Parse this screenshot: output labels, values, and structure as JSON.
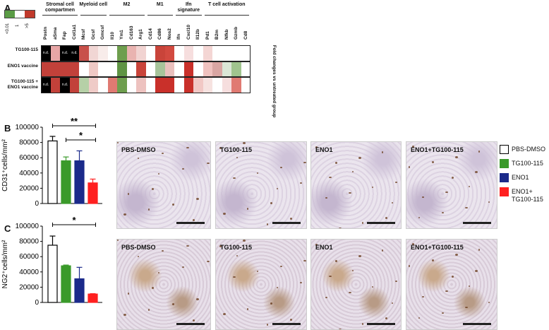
{
  "panels": {
    "a": "A",
    "b": "B",
    "c": "C"
  },
  "heatmap": {
    "scale_labels": [
      ">5",
      "1",
      "<0.01"
    ],
    "scale_colors": [
      "#c0392b",
      "#ffffff",
      "#5a9c45"
    ],
    "groups": [
      {
        "title": "Stromal cell compartmen",
        "genes": [
          "Postn",
          "aSma",
          "Fap",
          "Col1a1"
        ]
      },
      {
        "title": "Myeloid cell",
        "genes": [
          "Mcsf",
          "Gcsf",
          "Gmcsf"
        ]
      },
      {
        "title": "M2",
        "genes": [
          "Il10",
          "Ym1",
          "Cd163",
          "Arg1"
        ]
      },
      {
        "title": "M1",
        "genes": [
          "Cd14",
          "Cd86",
          "Nos2"
        ]
      },
      {
        "title": "Ifn signature",
        "genes": [
          "Ifn",
          "Cxcl10",
          "Il12b"
        ]
      },
      {
        "title": "T cell activation",
        "genes": [
          "Pd1",
          "B2m",
          "Nfkb",
          "Gzmb",
          "Cd8"
        ]
      }
    ],
    "rows": [
      "TG100-115",
      "ENO1 vaccine",
      "TG100-115 + ENO1 vaccine"
    ],
    "nd_text": "n.d.",
    "side_label": "Fold changes vs untreated group",
    "cells": [
      [
        "nd",
        "#e7a6a6",
        "nd",
        "nd",
        "#c8504a",
        "#f1d6d4",
        "#f8ecea",
        "#ffffff",
        "#6e9e4e",
        "#e9b3b0",
        "#f1d3d1",
        "#ffffff",
        "#c9443a",
        "#d24a40",
        "#ffffff",
        "#f6dede",
        "#ffffff",
        "#f4d6d4",
        "#ffffff",
        "#ffffff",
        "#ffffff"
      ],
      [
        "#c2413a",
        "#c2413a",
        "#c2413a",
        "#c2413a",
        "#ffffff",
        "#efc9c5",
        "#ffffff",
        "#ffffff",
        "#5f9444",
        "#ffffff",
        "#c9443a",
        "#ffffff",
        "#a7c49a",
        "#eac0bd",
        "#ffffff",
        "#c9302a",
        "#ffffff",
        "#efc2bf",
        "#d9a6a3",
        "#dbe6d6",
        "#a0c48e"
      ],
      [
        "nd",
        "#c2413a",
        "nd",
        "#c2413a",
        "#b6d0a7",
        "#efcbc7",
        "#ffffff",
        "#e07a72",
        "#6e9e4e",
        "#ffffff",
        "#edc2bf",
        "#ffffff",
        "#c9302a",
        "#c9302a",
        "#ffffff",
        "#c9302a",
        "#f1c8c5",
        "#f6e2e0",
        "#ffffff",
        "#f6dede",
        "#e07a72"
      ]
    ]
  },
  "chart_data": [
    {
      "type": "bar",
      "ylabel": "CD31⁺cells/mm²",
      "ylim": [
        0,
        100000
      ],
      "yticks": [
        "0",
        "20000",
        "40000",
        "60000",
        "80000",
        "100000"
      ],
      "categories": [
        "PBS-DMSO",
        "TG100-115",
        "ENO1",
        "ENO1+TG100-115"
      ],
      "values": [
        82000,
        56000,
        56000,
        27000
      ],
      "errors": [
        6000,
        5000,
        13000,
        5000
      ],
      "colors": [
        "#ffffff",
        "#3a9a2a",
        "#1b2a8a",
        "#ff2020"
      ],
      "significance": [
        {
          "from": 0,
          "to": 3,
          "label": "**"
        },
        {
          "from": 1,
          "to": 3,
          "label": "*"
        }
      ]
    },
    {
      "type": "bar",
      "ylabel": "NG2⁺cells/mm²",
      "ylim": [
        0,
        100000
      ],
      "yticks": [
        "0",
        "20000",
        "40000",
        "60000",
        "80000",
        "100000"
      ],
      "categories": [
        "PBS-DMSO",
        "TG100-115",
        "ENO1",
        "ENO1+TG100-115"
      ],
      "values": [
        75000,
        48000,
        31000,
        11000
      ],
      "errors": [
        12000,
        1000,
        15000,
        500
      ],
      "colors": [
        "#ffffff",
        "#3a9a2a",
        "#1b2a8a",
        "#ff2020"
      ],
      "significance": [
        {
          "from": 0,
          "to": 3,
          "label": "*"
        }
      ]
    }
  ],
  "legend": [
    {
      "label": "PBS-DMSO",
      "color": "#ffffff"
    },
    {
      "label": "TG100-115",
      "color": "#3a9a2a"
    },
    {
      "label": "ENO1",
      "color": "#1b2a8a"
    },
    {
      "label": "ENO1+\nTG100-115",
      "color": "#ff2020"
    }
  ],
  "micrographs": {
    "cd31": [
      "PBS-DMSO",
      "TG100-115",
      "ENO1",
      "ENO1+TG100-115"
    ],
    "ng2": [
      "PBS-DMSO",
      "TG100-115",
      "ENO1",
      "ENO1+TG100-115"
    ]
  }
}
